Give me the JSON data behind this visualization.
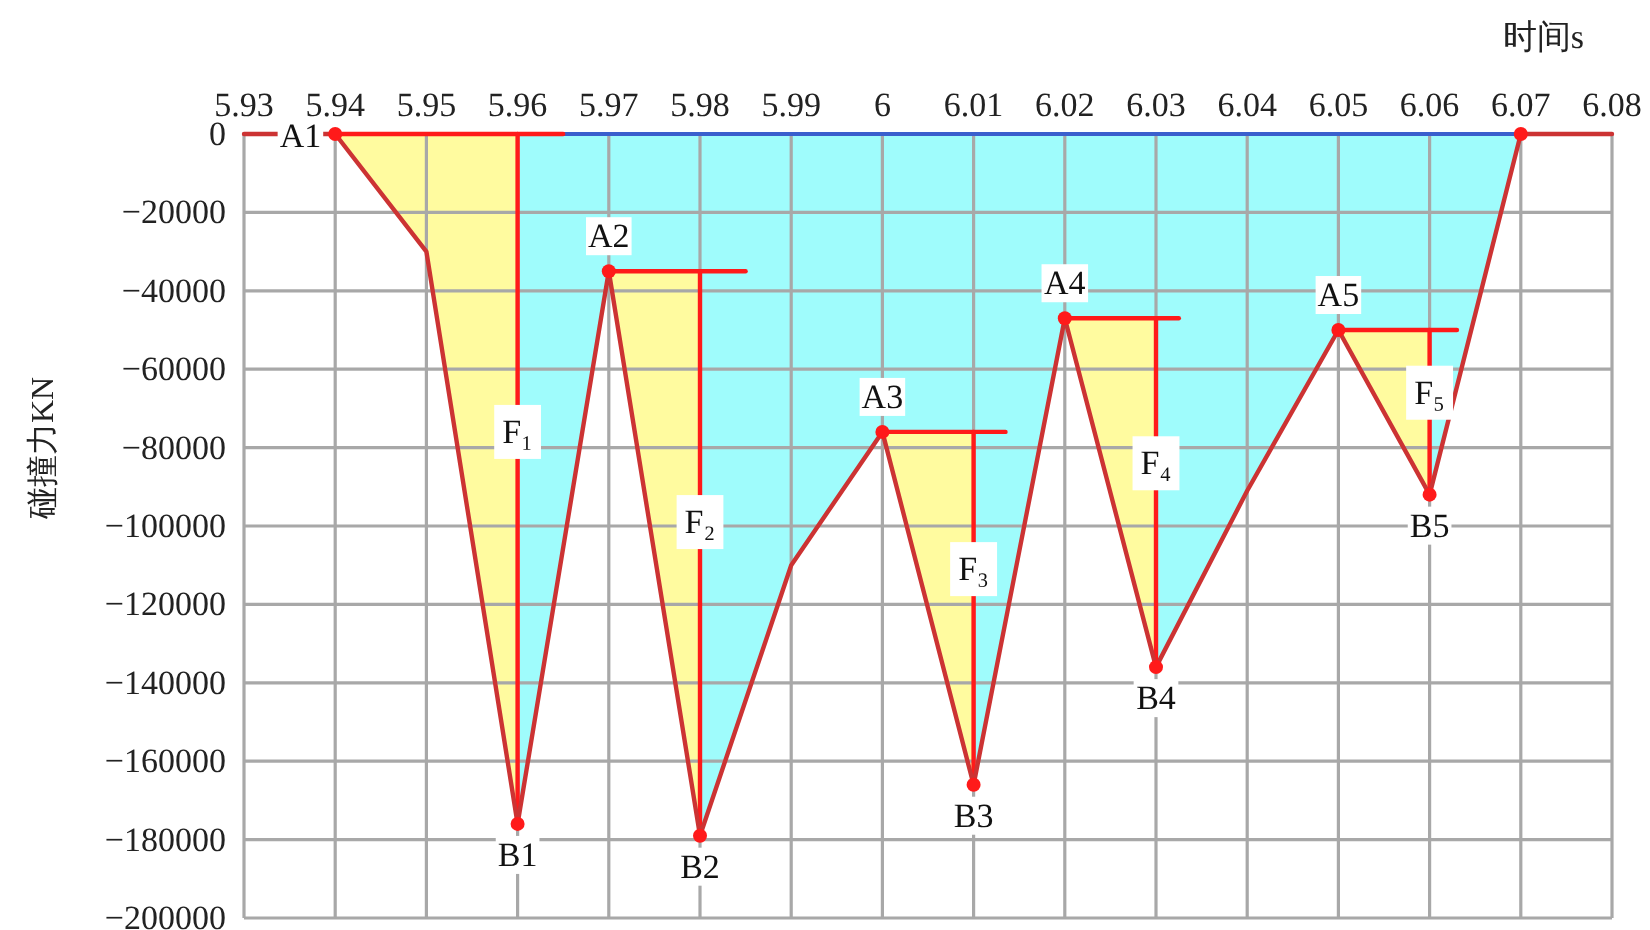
{
  "chart_data": {
    "type": "line",
    "xlabel": "时间s",
    "ylabel": "碰撞力KN",
    "xlim": [
      5.93,
      6.08
    ],
    "xticks": [
      5.93,
      5.94,
      5.95,
      5.96,
      5.97,
      5.98,
      5.99,
      6,
      6.01,
      6.02,
      6.03,
      6.04,
      6.05,
      6.06,
      6.07,
      6.08
    ],
    "ylim": [
      -200000,
      0
    ],
    "yticks": [
      0,
      {
        "value": -20000,
        "label": "−20000"
      },
      {
        "value": -40000,
        "label": "−40000"
      },
      {
        "value": -60000,
        "label": "−60000"
      },
      {
        "value": -80000,
        "label": "−80000"
      },
      {
        "value": -100000,
        "label": "−100000"
      },
      {
        "value": -120000,
        "label": "−120000"
      },
      {
        "value": -140000,
        "label": "−140000"
      },
      {
        "value": -160000,
        "label": "−160000"
      },
      {
        "value": -180000,
        "label": "−180000"
      },
      {
        "value": -200000,
        "label": "−200000"
      }
    ],
    "grid": true,
    "series": [
      {
        "type": "area",
        "x": [
          5.96,
          5.97,
          5.98,
          5.99,
          6,
          6.01,
          6.02,
          6.03,
          6.04,
          6.05,
          6.06,
          6.07
        ],
        "values": [
          -176000,
          -35000,
          -179000,
          -110000,
          -76000,
          -166000,
          -47000,
          -136000,
          -91000,
          -50000,
          -92000,
          0
        ],
        "color": "#9ffcfc"
      },
      {
        "type": "line",
        "x": [
          5.94,
          5.95,
          5.96,
          5.965
        ],
        "values": [
          0,
          0,
          0,
          0
        ],
        "lower": [
          0,
          -30000,
          -176000,
          null
        ],
        "upper": [
          0,
          0,
          0,
          null
        ],
        "color": "#ff1a1a"
      },
      {
        "type": "line",
        "x": [
          5.97,
          5.98,
          5.985
        ],
        "values": [
          -35000,
          -35000,
          -35000
        ],
        "lower": [
          -35000,
          -179000,
          null
        ],
        "upper": [
          -35000,
          -35000,
          null
        ],
        "color": "#ff1a1a"
      },
      {
        "type": "line",
        "x": [
          6,
          6.01,
          6.0135
        ],
        "values": [
          -76000,
          -76000,
          -76000
        ],
        "lower": [
          -76000,
          -166000,
          null
        ],
        "upper": [
          -76000,
          -76000,
          null
        ],
        "color": "#ff1a1a"
      },
      {
        "type": "line",
        "x": [
          6.02,
          6.03,
          6.0325
        ],
        "values": [
          -47000,
          -47000,
          -47000
        ],
        "lower": [
          -47000,
          -136000,
          null
        ],
        "upper": [
          -47000,
          -47000,
          null
        ],
        "color": "#ff1a1a"
      },
      {
        "type": "line",
        "x": [
          6.05,
          6.06,
          6.063
        ],
        "values": [
          -50000,
          -50000,
          -50000
        ],
        "lower": [
          -50000,
          -92000,
          null
        ],
        "upper": [
          -50000,
          -50000,
          null
        ],
        "color": "#ff1a1a"
      },
      {
        "type": "line",
        "x": [
          5.96,
          5.96
        ],
        "values": [
          0,
          -176000
        ],
        "color": "#ff1a1a"
      },
      {
        "type": "line",
        "x": [
          5.98,
          5.98
        ],
        "values": [
          -35000,
          -179000
        ],
        "color": "#ff1a1a"
      },
      {
        "type": "line",
        "x": [
          6.01,
          6.01
        ],
        "values": [
          -76000,
          -166000
        ],
        "color": "#ff1a1a"
      },
      {
        "type": "line",
        "x": [
          6.03,
          6.03
        ],
        "values": [
          -47000,
          -136000
        ],
        "color": "#ff1a1a"
      },
      {
        "type": "line",
        "x": [
          6.06,
          6.06
        ],
        "values": [
          -50000,
          -92000
        ],
        "color": "#ff1a1a"
      },
      {
        "x": [
          5.93,
          5.94,
          5.95,
          5.96,
          5.97,
          5.98,
          5.99,
          6,
          6.01,
          6.02,
          6.03,
          6.04,
          6.05,
          6.06,
          6.07,
          6.08
        ],
        "values": [
          0,
          0,
          -30000,
          -176000,
          -35000,
          -179000,
          -110000,
          -76000,
          -166000,
          -47000,
          -136000,
          -91000,
          -50000,
          -92000,
          0,
          0
        ],
        "color": "#cc3333"
      },
      {
        "type": "scatter",
        "x": [
          5.94,
          5.96,
          5.97,
          5.98,
          6,
          6.01,
          6.02,
          6.03,
          6.05,
          6.06,
          6.07
        ],
        "values": [
          0,
          -176000,
          -35000,
          -179000,
          -76000,
          -166000,
          -47000,
          -136000,
          -50000,
          -92000,
          0
        ],
        "color": "#ff1a1a",
        "marker": "circle"
      }
    ],
    "annotations": [
      {
        "text": "A1",
        "x": 5.94,
        "y": 0
      },
      {
        "text": "F₁",
        "x": 5.96,
        "y": -76000
      },
      {
        "text": "B1",
        "x": 5.96,
        "y": -176000
      },
      {
        "text": "A2",
        "x": 5.97,
        "y": -35000
      },
      {
        "text": "F₂",
        "x": 5.98,
        "y": -99000
      },
      {
        "text": "B2",
        "x": 5.98,
        "y": -179000
      },
      {
        "text": "A3",
        "x": 6,
        "y": -76000
      },
      {
        "text": "F₃",
        "x": 6.01,
        "y": -111000
      },
      {
        "text": "B3",
        "x": 6.01,
        "y": -166000
      },
      {
        "text": "A4",
        "x": 6.02,
        "y": -47000
      },
      {
        "text": "F₄",
        "x": 6.03,
        "y": -84000
      },
      {
        "text": "B4",
        "x": 6.03,
        "y": -136000
      },
      {
        "text": "A5",
        "x": 6.05,
        "y": -50000
      },
      {
        "text": "F₅",
        "x": 6.06,
        "y": -66000
      },
      {
        "text": "B5",
        "x": 6.06,
        "y": -92000
      }
    ]
  }
}
